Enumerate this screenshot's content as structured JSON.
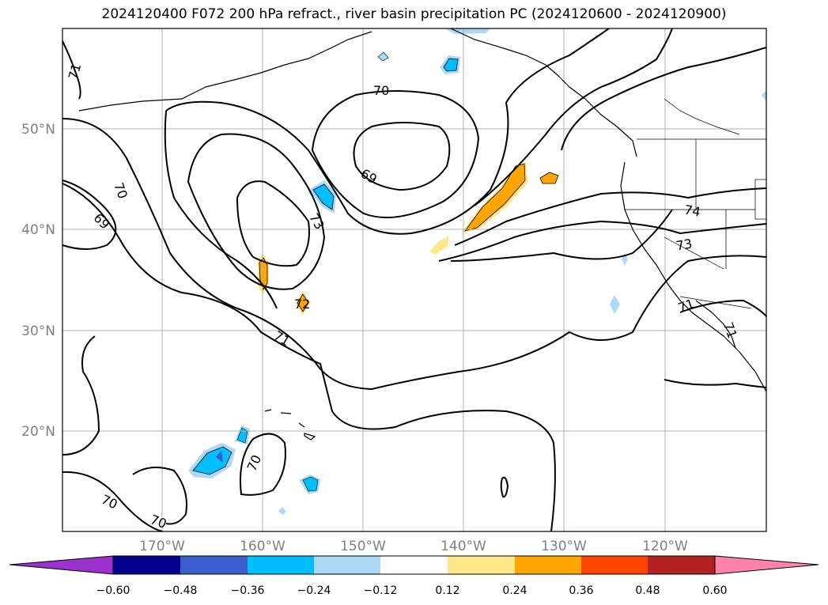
{
  "title": "2024120400 F072 200 hPa refract., river basin precipitation PC (2024120600 - 2024120900)",
  "lat_labels": [
    "50°N",
    "40°N",
    "30°N",
    "20°N"
  ],
  "lon_labels": [
    "170°W",
    "160°W",
    "150°W",
    "140°W",
    "130°W",
    "120°W"
  ],
  "contour_labels": [
    "71",
    "70",
    "69",
    "70",
    "69",
    "73",
    "72",
    "71",
    "70",
    "70",
    "70",
    "74",
    "73",
    "71",
    "71"
  ],
  "colorbar": {
    "ticks": [
      "−0.60",
      "−0.48",
      "−0.36",
      "−0.24",
      "−0.12",
      "0.12",
      "0.24",
      "0.36",
      "0.48",
      "0.60"
    ],
    "colors": [
      "#9932cc",
      "#00008b",
      "#3a5fcd",
      "#00bfff",
      "#add8f7",
      "#ffffff",
      "#ffe88a",
      "#ffa500",
      "#ff4500",
      "#b22222",
      "#ff82ab"
    ]
  },
  "map": {
    "extent_lon": [
      -180,
      -110
    ],
    "extent_lat": [
      10,
      60
    ],
    "gridlines": true,
    "contour_field": "200 hPa refractivity",
    "shaded_field": "river basin precipitation PC"
  }
}
